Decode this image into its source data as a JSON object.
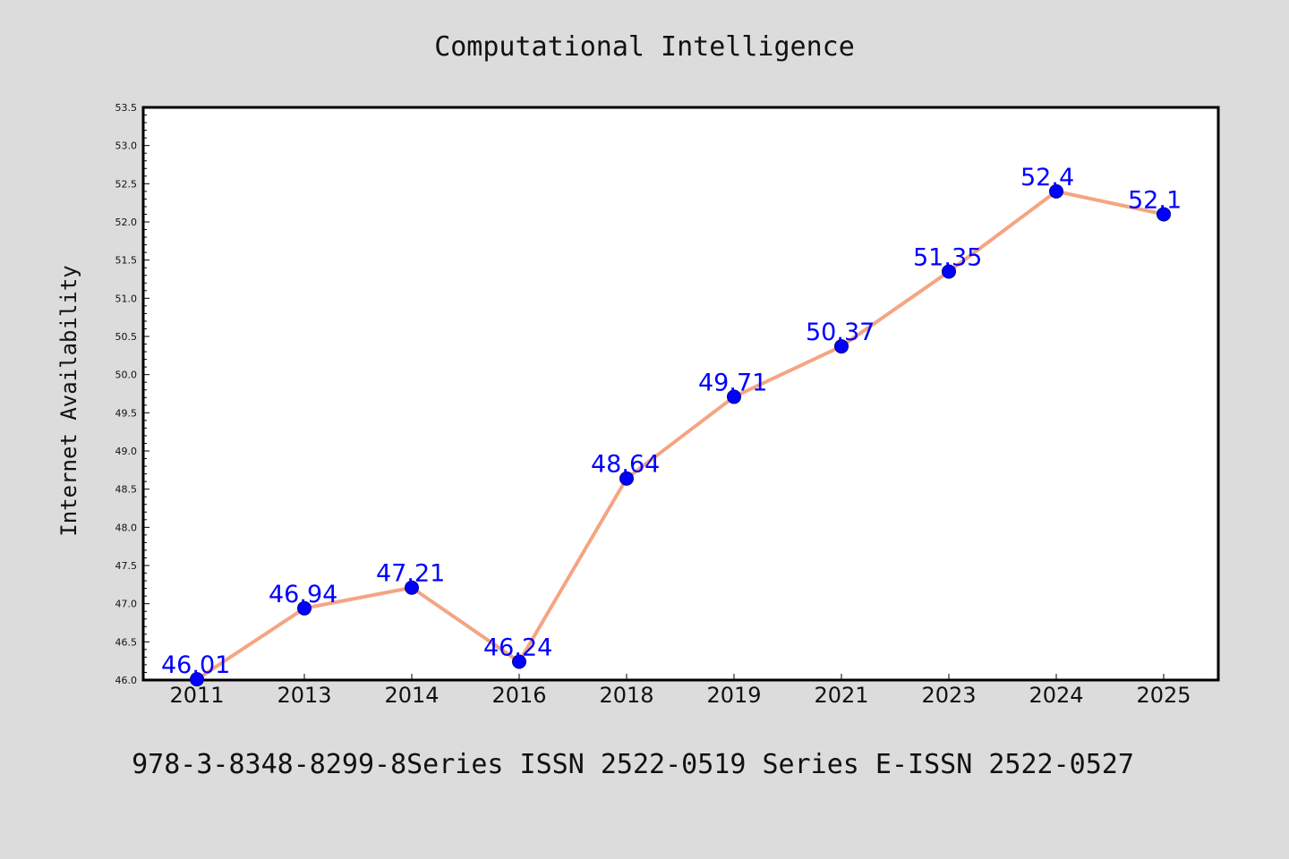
{
  "chart_data": {
    "type": "line",
    "title": "Computational Intelligence",
    "xlabel": "",
    "ylabel": "Internet Availability",
    "categories": [
      "2011",
      "2013",
      "2014",
      "2016",
      "2018",
      "2019",
      "2021",
      "2023",
      "2024",
      "2025"
    ],
    "values": [
      46.01,
      46.94,
      47.21,
      46.24,
      48.64,
      49.71,
      50.37,
      51.35,
      52.4,
      52.1
    ],
    "data_labels": [
      "46.01",
      "46.94",
      "47.21",
      "46.24",
      "48.64",
      "49.71",
      "50.37",
      "51.35",
      "52.4",
      "52.1"
    ],
    "ylim": [
      46.0,
      53.5
    ],
    "yticks": [
      "46.0",
      "46.5",
      "47.0",
      "47.5",
      "48.0",
      "48.5",
      "49.0",
      "49.5",
      "50.0",
      "50.5",
      "51.0",
      "51.5",
      "52.0",
      "52.5",
      "53.0",
      "53.5"
    ],
    "grid": false,
    "line_color": "#f4a582",
    "marker_color": "#0000ff",
    "label_color": "#0000ff"
  },
  "footer": {
    "text": "978-3-8348-8299-8Series ISSN 2522-0519 Series E-ISSN 2522-0527"
  }
}
